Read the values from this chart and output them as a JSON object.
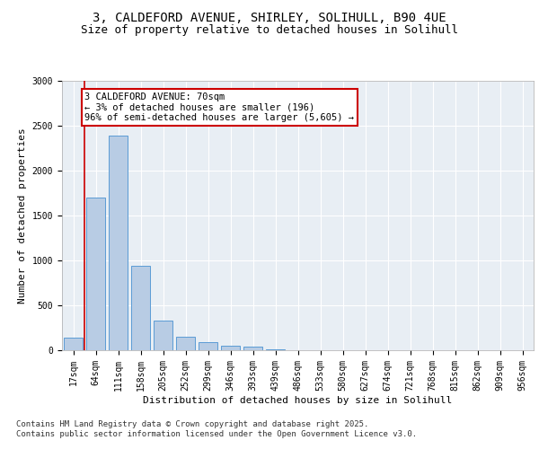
{
  "title_line1": "3, CALDEFORD AVENUE, SHIRLEY, SOLIHULL, B90 4UE",
  "title_line2": "Size of property relative to detached houses in Solihull",
  "xlabel": "Distribution of detached houses by size in Solihull",
  "ylabel": "Number of detached properties",
  "categories": [
    "17sqm",
    "64sqm",
    "111sqm",
    "158sqm",
    "205sqm",
    "252sqm",
    "299sqm",
    "346sqm",
    "393sqm",
    "439sqm",
    "486sqm",
    "533sqm",
    "580sqm",
    "627sqm",
    "674sqm",
    "721sqm",
    "768sqm",
    "815sqm",
    "862sqm",
    "909sqm",
    "956sqm"
  ],
  "values": [
    140,
    1700,
    2390,
    940,
    335,
    155,
    90,
    55,
    40,
    15,
    5,
    0,
    0,
    0,
    0,
    0,
    0,
    0,
    0,
    0,
    0
  ],
  "bar_color": "#b8cce4",
  "bar_edge_color": "#5b9bd5",
  "annotation_text": "3 CALDEFORD AVENUE: 70sqm\n← 3% of detached houses are smaller (196)\n96% of semi-detached houses are larger (5,605) →",
  "annotation_box_color": "#ffffff",
  "annotation_box_edge_color": "#cc0000",
  "vline_color": "#cc0000",
  "ylim": [
    0,
    3000
  ],
  "yticks": [
    0,
    500,
    1000,
    1500,
    2000,
    2500,
    3000
  ],
  "background_color": "#e8eef4",
  "grid_color": "#ffffff",
  "footer_text": "Contains HM Land Registry data © Crown copyright and database right 2025.\nContains public sector information licensed under the Open Government Licence v3.0.",
  "title_fontsize": 10,
  "subtitle_fontsize": 9,
  "axis_label_fontsize": 8,
  "tick_fontsize": 7,
  "annotation_fontsize": 7.5,
  "footer_fontsize": 6.5
}
